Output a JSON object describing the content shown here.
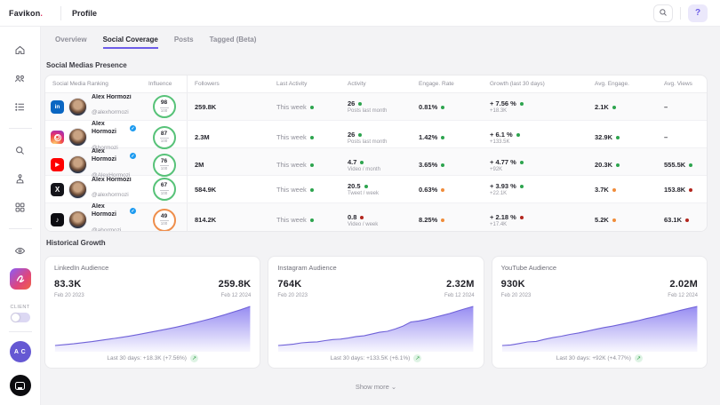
{
  "topbar": {
    "logo": "Favikon",
    "logo_suffix": ".",
    "title": "Profile"
  },
  "tabs": [
    {
      "label": "Overview",
      "active": false
    },
    {
      "label": "Social Coverage",
      "active": true
    },
    {
      "label": "Posts",
      "active": false
    },
    {
      "label": "Tagged (Beta)",
      "active": false
    }
  ],
  "sections": {
    "presence_title": "Social Medias Presence",
    "growth_title": "Historical Growth"
  },
  "table": {
    "headers": [
      "Social Media Ranking",
      "Influence",
      "Followers",
      "Last Activity",
      "Activity",
      "Engage. Rate",
      "Growth (last 30 days)",
      "Avg. Engage.",
      "Avg. Views"
    ],
    "rows": [
      {
        "platform": "linkedin",
        "name": "Alex Hormozi",
        "handle": "@alexhormozi",
        "verified": false,
        "influence": "98",
        "influence_max": "100",
        "influence_ring": "green",
        "followers": "259.8K",
        "last_activity": "This week",
        "last_activity_dot": "green",
        "activity": "26",
        "activity_dot": "green",
        "activity_label": "Posts last month",
        "engage_rate": "0.81%",
        "engage_rate_dot": "green",
        "growth": "+ 7.56 %",
        "growth_dot": "green",
        "growth_sub": "+18.3K",
        "avg_engage": "2.1K",
        "avg_engage_dot": "green",
        "avg_views": "–",
        "avg_views_dot": null
      },
      {
        "platform": "instagram",
        "name": "Alex Hormozi",
        "handle": "@hormozi",
        "verified": true,
        "influence": "87",
        "influence_max": "100",
        "influence_ring": "green",
        "followers": "2.3M",
        "last_activity": "This week",
        "last_activity_dot": "green",
        "activity": "26",
        "activity_dot": "green",
        "activity_label": "Posts last month",
        "engage_rate": "1.42%",
        "engage_rate_dot": "green",
        "growth": "+ 6.1 %",
        "growth_dot": "green",
        "growth_sub": "+133.5K",
        "avg_engage": "32.9K",
        "avg_engage_dot": "green",
        "avg_views": "–",
        "avg_views_dot": null
      },
      {
        "platform": "youtube",
        "name": "Alex Hormozi",
        "handle": "@AlexHormozi",
        "verified": true,
        "influence": "76",
        "influence_max": "100",
        "influence_ring": "green",
        "followers": "2M",
        "last_activity": "This week",
        "last_activity_dot": "green",
        "activity": "4.7",
        "activity_dot": "green",
        "activity_label": "Video / month",
        "engage_rate": "3.65%",
        "engage_rate_dot": "green",
        "growth": "+ 4.77 %",
        "growth_dot": "green",
        "growth_sub": "+92K",
        "avg_engage": "20.3K",
        "avg_engage_dot": "green",
        "avg_views": "555.5K",
        "avg_views_dot": "green"
      },
      {
        "platform": "x",
        "name": "Alex Hormozi",
        "handle": "@alexhormozi",
        "verified": false,
        "influence": "67",
        "influence_max": "100",
        "influence_ring": "green",
        "followers": "584.9K",
        "last_activity": "This week",
        "last_activity_dot": "green",
        "activity": "20.5",
        "activity_dot": "green",
        "activity_label": "Tweet / week",
        "engage_rate": "0.63%",
        "engage_rate_dot": "orange",
        "growth": "+ 3.93 %",
        "growth_dot": "green",
        "growth_sub": "+22.1K",
        "avg_engage": "3.7K",
        "avg_engage_dot": "orange",
        "avg_views": "153.8K",
        "avg_views_dot": "red"
      },
      {
        "platform": "tiktok",
        "name": "Alex Hormozi",
        "handle": "@ahormozi",
        "verified": true,
        "influence": "49",
        "influence_max": "100",
        "influence_ring": "orange",
        "followers": "814.2K",
        "last_activity": "This week",
        "last_activity_dot": "green",
        "activity": "0.8",
        "activity_dot": "red",
        "activity_label": "Video / week",
        "engage_rate": "8.25%",
        "engage_rate_dot": "orange",
        "growth": "+ 2.18 %",
        "growth_dot": "red",
        "growth_sub": "+17.4K",
        "avg_engage": "5.2K",
        "avg_engage_dot": "orange",
        "avg_views": "63.1K",
        "avg_views_dot": "red"
      }
    ]
  },
  "chart_data": [
    {
      "type": "area",
      "title": "LinkedIn Audience",
      "start_value": "83.3K",
      "start_date": "Feb 20 2023",
      "end_value": "259.8K",
      "end_date": "Feb 12 2024",
      "footer": "Last 30 days: +18.3K (+7.56%)",
      "series": [
        83.3,
        87,
        91,
        96,
        101,
        107,
        113,
        119,
        126,
        133,
        141,
        149,
        157,
        166,
        175,
        185,
        196,
        207,
        219,
        232,
        245,
        259.8
      ]
    },
    {
      "type": "area",
      "title": "Instagram Audience",
      "start_value": "764K",
      "start_date": "Feb 20 2023",
      "end_value": "2.32M",
      "end_date": "Feb 12 2024",
      "footer": "Last 30 days: +133.5K (+6.1%)",
      "series": [
        764,
        790,
        820,
        870,
        895,
        910,
        960,
        1000,
        1020,
        1060,
        1120,
        1150,
        1220,
        1290,
        1330,
        1420,
        1540,
        1700,
        1740,
        1800,
        1880,
        1960,
        2040,
        2140,
        2230,
        2320
      ]
    },
    {
      "type": "area",
      "title": "YouTube Audience",
      "start_value": "930K",
      "start_date": "Feb 20 2023",
      "end_value": "2.02M",
      "end_date": "Feb 12 2024",
      "footer": "Last 30 days: +92K (+4.77%)",
      "series": [
        930,
        945,
        985,
        1030,
        1045,
        1100,
        1150,
        1190,
        1240,
        1280,
        1330,
        1380,
        1430,
        1470,
        1520,
        1570,
        1620,
        1680,
        1730,
        1790,
        1850,
        1910,
        1965,
        2020
      ]
    }
  ],
  "show_more": {
    "label": "Show more"
  },
  "sidebar": {
    "client_label": "CLIENT",
    "avatar_initials": "A C"
  },
  "colors": {
    "accent_purple": "#6c5ce7",
    "chart_line": "#7f72e0",
    "green": "#2da44e",
    "orange": "#f08c3a",
    "red": "#b3261e",
    "logo_dot": "#e03464"
  }
}
